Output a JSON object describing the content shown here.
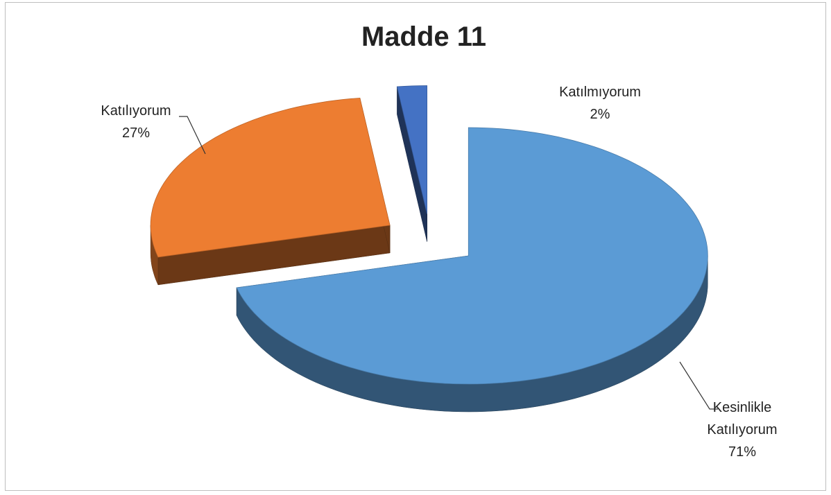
{
  "chart_data": {
    "type": "pie3d",
    "title": "Madde 11",
    "categories": [
      "Kesinlikle Katılıyorum",
      "Katılıyorum",
      "Katılmıyorum"
    ],
    "values": [
      71,
      27,
      2
    ],
    "value_labels": [
      "71%",
      "27%",
      "2%"
    ],
    "colors": [
      "#5b9bd5",
      "#ed7d31",
      "#4472c4"
    ]
  }
}
